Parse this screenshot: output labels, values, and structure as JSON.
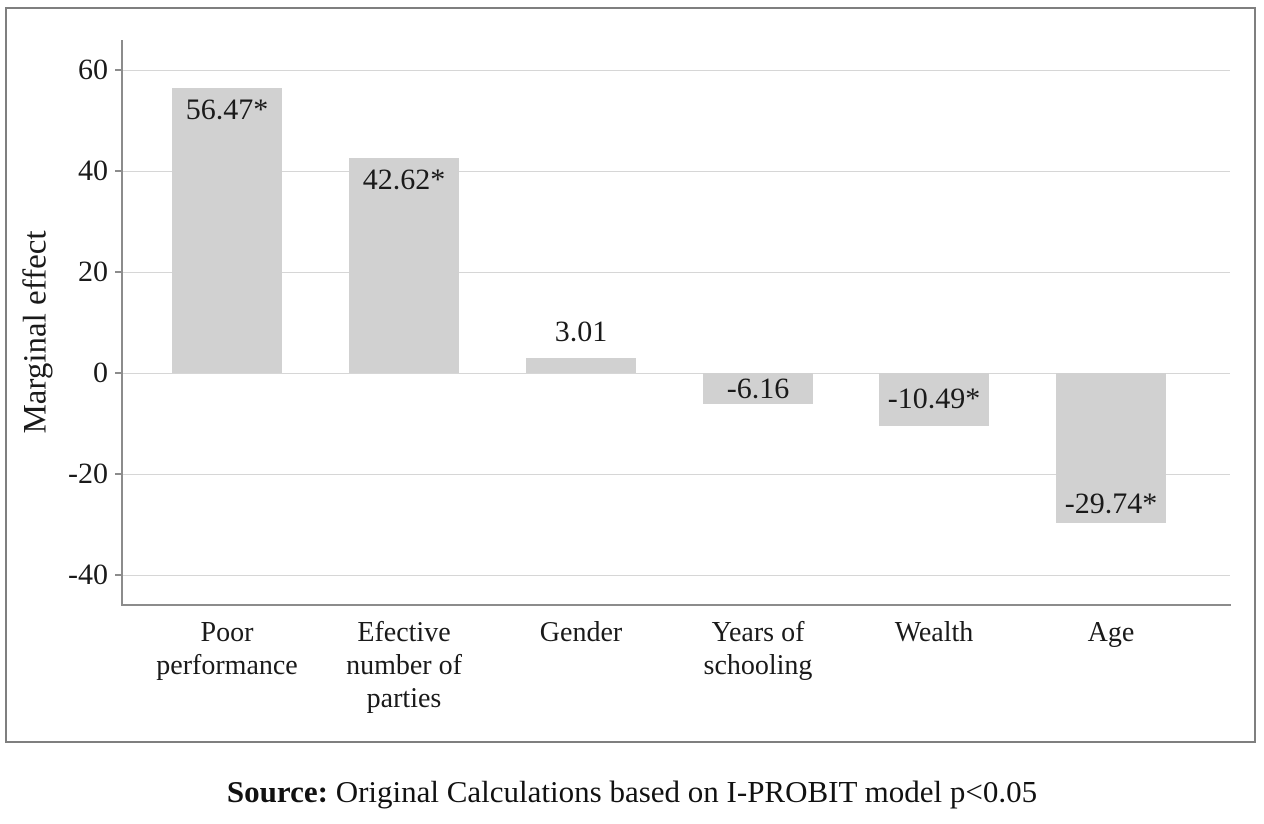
{
  "figure": {
    "source": {
      "prefix": "Source:",
      "text": " Original Calculations based on I-PROBIT model p<0.05"
    }
  },
  "chart_data": {
    "type": "bar",
    "title": "",
    "xlabel": "",
    "ylabel": "Marginal effect",
    "categories": [
      "Poor performance",
      "Efective number of parties",
      "Gender",
      "Years of schooling",
      "Wealth",
      "Age"
    ],
    "category_lines": [
      [
        "Poor",
        "performance"
      ],
      [
        "Efective",
        "number of",
        "parties"
      ],
      [
        "Gender"
      ],
      [
        "Years of",
        "schooling"
      ],
      [
        "Wealth"
      ],
      [
        "Age"
      ]
    ],
    "values": [
      56.47,
      42.62,
      3.01,
      -6.16,
      -10.49,
      -29.74
    ],
    "value_labels": [
      "56.47*",
      "42.62*",
      "3.01",
      "-6.16",
      "-10.49*",
      "-29.74*"
    ],
    "significant": [
      true,
      true,
      false,
      false,
      true,
      true
    ],
    "yticks": [
      60,
      40,
      20,
      0,
      -20,
      -40
    ],
    "ylim": [
      -46,
      66
    ],
    "grid": true,
    "legend": false,
    "bar_color": "#d1d1d1",
    "gridline_color": "#d6d6d6",
    "axis_color": "#8c8c8c",
    "border_color": "#7f7f7f"
  }
}
